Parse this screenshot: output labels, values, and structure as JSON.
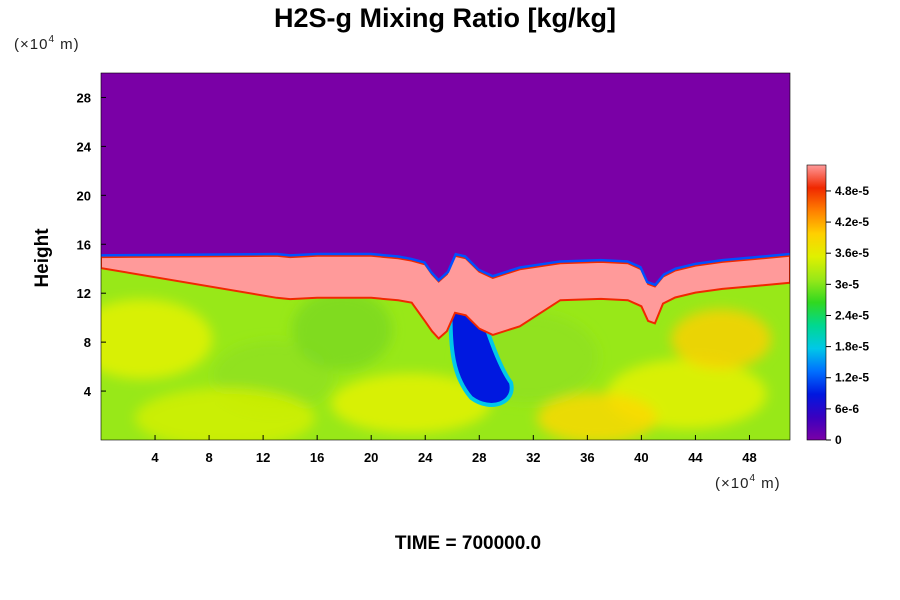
{
  "chart_data": {
    "type": "heatmap",
    "title": "H2S-g Mixing Ratio [kg/kg]",
    "ylabel": "Height",
    "x_unit": {
      "prefix": "(×10",
      "exp": "4",
      "suffix": " m)"
    },
    "y_unit": {
      "prefix": "(×10",
      "exp": "4",
      "suffix": " m)"
    },
    "xlim": [
      0,
      51
    ],
    "ylim": [
      0,
      30
    ],
    "x_ticks": [
      4,
      8,
      12,
      16,
      20,
      24,
      28,
      32,
      36,
      40,
      44,
      48
    ],
    "y_ticks": [
      4,
      8,
      12,
      16,
      20,
      24,
      28
    ],
    "colorbar": {
      "min": 0,
      "max": 5.3e-05,
      "tick_values": [
        0,
        6e-06,
        1.2e-05,
        1.8e-05,
        2.4e-05,
        3e-05,
        3.6e-05,
        4.2e-05,
        4.8e-05
      ],
      "tick_labels": [
        "0",
        "6e-6",
        "1.2e-5",
        "1.8e-5",
        "2.4e-5",
        "3e-5",
        "3.6e-5",
        "4.2e-5",
        "4.8e-5"
      ],
      "colors": [
        "#7a00a6",
        "#3a00c0",
        "#0018e0",
        "#0070ff",
        "#00c8e8",
        "#00d890",
        "#30d820",
        "#98e818",
        "#e0f000",
        "#ffd000",
        "#ff8000",
        "#f02800",
        "#ff9a9a"
      ]
    },
    "upper_layer_value": 0,
    "lower_layer_value": 3.3e-05,
    "interface_height": 15.2,
    "interface_profile": {
      "x": [
        0,
        13,
        14,
        16,
        18,
        20,
        22,
        23,
        24,
        24.5,
        25,
        25.6,
        26.2,
        27,
        28,
        29,
        31,
        34,
        37,
        39,
        40,
        40.5,
        41,
        41.6,
        42.5,
        44,
        46,
        48,
        51
      ],
      "y": [
        15.2,
        15.3,
        15.2,
        15.3,
        15.3,
        15.3,
        15.1,
        14.9,
        14.6,
        13.8,
        13.2,
        13.8,
        15.3,
        15.1,
        14.0,
        13.5,
        14.2,
        14.7,
        14.8,
        14.7,
        14.2,
        13.0,
        12.8,
        13.6,
        14.1,
        14.5,
        14.8,
        15.0,
        15.3
      ]
    },
    "high_concentration_band": {
      "value": 5.2e-05
    },
    "low_concentration_plume": {
      "value": 8e-06,
      "center_x": 28.5,
      "center_y": 5.5
    }
  },
  "time_label": "TIME = 700000.0"
}
